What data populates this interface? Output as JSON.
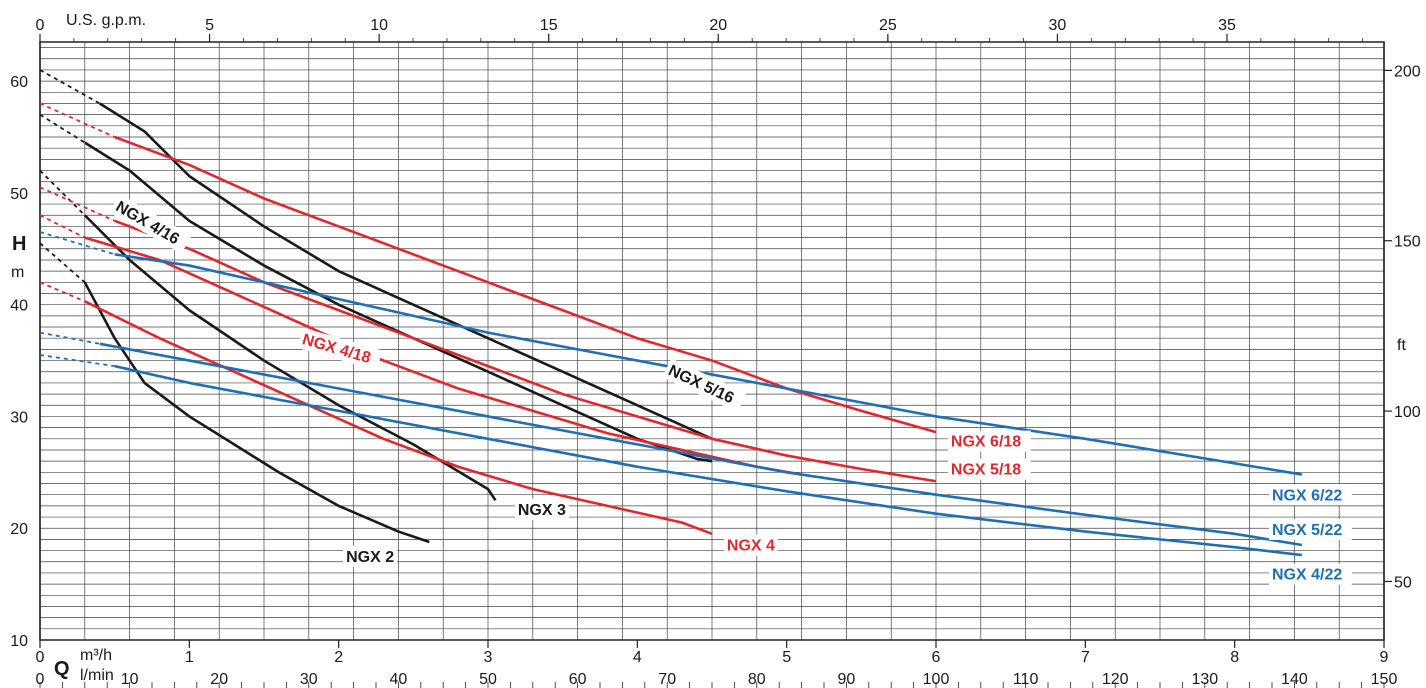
{
  "chart_data": {
    "type": "line",
    "axes": {
      "x_primary": {
        "label_quantity": "Q",
        "unit": "m³/h",
        "range": [
          0,
          9
        ],
        "ticks": [
          0,
          1,
          2,
          3,
          4,
          5,
          6,
          7,
          8,
          9
        ]
      },
      "x_lmin": {
        "unit": "l/min",
        "range": [
          0,
          150
        ],
        "ticks": [
          0,
          10,
          20,
          30,
          40,
          50,
          60,
          70,
          80,
          90,
          100,
          110,
          120,
          130,
          140,
          150
        ]
      },
      "x_top": {
        "unit": "U.S. g.p.m.",
        "range": [
          0,
          39.63
        ],
        "ticks": [
          0,
          5,
          10,
          15,
          20,
          25,
          30,
          35
        ]
      },
      "y_left": {
        "label": "H",
        "unit": "m",
        "range": [
          10,
          63.5
        ],
        "ticks": [
          10,
          20,
          30,
          40,
          50,
          60
        ]
      },
      "y_right": {
        "unit": "ft",
        "ticks": [
          50,
          100,
          150,
          200
        ]
      },
      "grid": true
    },
    "colors": {
      "black": "#1a1a1a",
      "red": "#e0282e",
      "blue": "#1f6fb2"
    },
    "series": [
      {
        "name": "NGX 2",
        "color": "black",
        "label_pos": [
          2.05,
          17.0
        ],
        "dashed": [
          [
            0,
            45.5
          ],
          [
            0.3,
            42
          ]
        ],
        "points": [
          [
            0.3,
            42
          ],
          [
            0.5,
            37
          ],
          [
            0.7,
            33
          ],
          [
            1,
            30
          ],
          [
            1.3,
            27.5
          ],
          [
            1.6,
            25
          ],
          [
            2,
            22
          ],
          [
            2.4,
            19.7
          ],
          [
            2.6,
            18.8
          ],
          [
            2.4,
            19.7
          ]
        ]
      },
      {
        "name": "NGX 3",
        "color": "black",
        "label_pos": [
          3.2,
          21.2
        ],
        "dashed": [
          [
            0,
            52
          ],
          [
            0.3,
            48
          ]
        ],
        "points": [
          [
            0.3,
            48
          ],
          [
            0.6,
            44
          ],
          [
            1,
            39.5
          ],
          [
            1.5,
            35
          ],
          [
            2,
            31
          ],
          [
            2.5,
            27.5
          ],
          [
            3,
            23.5
          ],
          [
            3.05,
            22.5
          ]
        ]
      },
      {
        "name": "NGX 4/16",
        "color": "black",
        "label_pos": [
          0.5,
          48.5
        ],
        "rotate": 30,
        "dashed": [
          [
            0,
            57
          ],
          [
            0.3,
            54.5
          ]
        ],
        "points": [
          [
            0.3,
            54.5
          ],
          [
            0.6,
            52
          ],
          [
            1,
            47.5
          ],
          [
            1.5,
            43.5
          ],
          [
            2,
            40
          ],
          [
            2.5,
            37
          ],
          [
            3,
            34
          ],
          [
            3.5,
            31
          ],
          [
            4,
            28
          ],
          [
            4.4,
            26.2
          ],
          [
            4.5,
            26
          ]
        ]
      },
      {
        "name": "NGX 5/16",
        "color": "black",
        "label_pos": [
          4.2,
          33.8
        ],
        "rotate": 25,
        "dashed": [
          [
            0,
            61
          ],
          [
            0.4,
            58
          ]
        ],
        "points": [
          [
            0.4,
            58
          ],
          [
            0.7,
            55.5
          ],
          [
            1,
            51.5
          ],
          [
            1.5,
            47
          ],
          [
            2,
            43
          ],
          [
            2.5,
            40
          ],
          [
            3,
            37
          ],
          [
            3.5,
            34
          ],
          [
            4,
            31
          ],
          [
            4.5,
            28
          ]
        ]
      },
      {
        "name": "NGX 4",
        "color": "red",
        "label_pos": [
          4.6,
          18.0
        ],
        "dashed": [
          [
            0,
            42
          ],
          [
            0.3,
            40.3
          ]
        ],
        "points": [
          [
            0.3,
            40.3
          ],
          [
            0.8,
            37
          ],
          [
            1.3,
            34
          ],
          [
            1.8,
            31
          ],
          [
            2.3,
            28
          ],
          [
            2.8,
            25.5
          ],
          [
            3.3,
            23.5
          ],
          [
            3.8,
            22
          ],
          [
            4.3,
            20.5
          ],
          [
            4.5,
            19.5
          ]
        ]
      },
      {
        "name": "NGX 4/18",
        "color": "red",
        "label_pos": [
          1.75,
          36.5
        ],
        "rotate": 16,
        "dashed": [
          [
            0,
            48
          ],
          [
            0.3,
            46
          ]
        ],
        "points": [
          [
            0.3,
            46
          ],
          [
            0.8,
            44
          ],
          [
            1.3,
            41
          ],
          [
            1.8,
            38
          ],
          [
            2.3,
            35
          ],
          [
            2.8,
            32.5
          ],
          [
            3.3,
            30.5
          ],
          [
            3.8,
            28.5
          ],
          [
            4.3,
            27
          ],
          [
            4.8,
            25.5
          ],
          [
            5.1,
            24.8
          ]
        ]
      },
      {
        "name": "NGX 5/18",
        "color": "red",
        "label_pos": [
          6.1,
          24.8
        ],
        "dashed": [
          [
            0,
            50.5
          ],
          [
            0.5,
            47.5
          ]
        ],
        "points": [
          [
            0.5,
            47.5
          ],
          [
            1,
            45
          ],
          [
            1.5,
            42
          ],
          [
            2,
            39.5
          ],
          [
            2.5,
            37
          ],
          [
            3,
            34.5
          ],
          [
            3.5,
            32
          ],
          [
            4,
            30
          ],
          [
            4.5,
            28
          ],
          [
            5,
            26.5
          ],
          [
            5.5,
            25.3
          ],
          [
            6,
            24.2
          ]
        ]
      },
      {
        "name": "NGX 6/18",
        "color": "red",
        "label_pos": [
          6.1,
          27.3
        ],
        "dashed": [
          [
            0,
            58
          ],
          [
            0.5,
            55
          ]
        ],
        "points": [
          [
            0.5,
            55
          ],
          [
            1,
            52.5
          ],
          [
            1.5,
            49.5
          ],
          [
            2,
            47
          ],
          [
            2.5,
            44.5
          ],
          [
            3,
            42
          ],
          [
            3.5,
            39.5
          ],
          [
            4,
            37
          ],
          [
            4.5,
            35
          ],
          [
            5,
            32.5
          ],
          [
            5.5,
            30.5
          ],
          [
            6,
            28.6
          ]
        ]
      },
      {
        "name": "NGX 4/22",
        "color": "blue",
        "label_pos": [
          8.25,
          15.4
        ],
        "dashed": [
          [
            0,
            35.5
          ],
          [
            0.5,
            34.5
          ]
        ],
        "points": [
          [
            0.5,
            34.5
          ],
          [
            1,
            33
          ],
          [
            2,
            30.5
          ],
          [
            3,
            28
          ],
          [
            4,
            25.5
          ],
          [
            5,
            23.3
          ],
          [
            6,
            21.3
          ],
          [
            7,
            19.7
          ],
          [
            8,
            18.3
          ],
          [
            8.45,
            17.6
          ]
        ]
      },
      {
        "name": "NGX 5/22",
        "color": "blue",
        "label_pos": [
          8.25,
          19.4
        ],
        "dashed": [
          [
            0,
            37.5
          ],
          [
            0.4,
            36.5
          ]
        ],
        "points": [
          [
            0.4,
            36.5
          ],
          [
            1,
            35
          ],
          [
            2,
            32.5
          ],
          [
            3,
            30
          ],
          [
            4,
            27.5
          ],
          [
            5,
            25
          ],
          [
            6,
            23
          ],
          [
            7,
            21.2
          ],
          [
            8,
            19.5
          ],
          [
            8.45,
            18.5
          ]
        ]
      },
      {
        "name": "NGX 6/22",
        "color": "blue",
        "label_pos": [
          8.25,
          22.5
        ],
        "dashed": [
          [
            0,
            46.5
          ],
          [
            0.5,
            44.5
          ]
        ],
        "points": [
          [
            0.5,
            44.5
          ],
          [
            1,
            43.5
          ],
          [
            2,
            40.5
          ],
          [
            3,
            37.5
          ],
          [
            4,
            35
          ],
          [
            5,
            32.5
          ],
          [
            6,
            30
          ],
          [
            7,
            28
          ],
          [
            8,
            25.8
          ],
          [
            8.45,
            24.8
          ]
        ]
      }
    ]
  }
}
